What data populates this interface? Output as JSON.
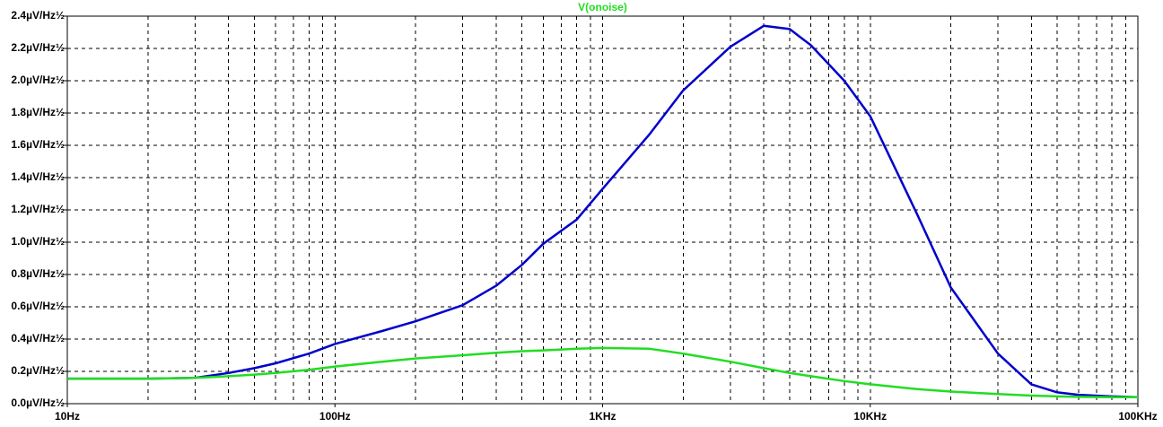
{
  "chart_data": {
    "type": "line",
    "xscale": "log",
    "grid": true,
    "minor_grid": true,
    "x": [
      10,
      20,
      30,
      40,
      50,
      60,
      80,
      100,
      150,
      200,
      300,
      400,
      500,
      600,
      800,
      1000,
      1500,
      2000,
      3000,
      4000,
      5000,
      6000,
      8000,
      10000,
      15000,
      20000,
      30000,
      40000,
      50000,
      60000,
      80000,
      100000
    ],
    "series": [
      {
        "color": "#0000cc",
        "values": [
          0.155,
          0.155,
          0.16,
          0.19,
          0.22,
          0.25,
          0.31,
          0.37,
          0.45,
          0.51,
          0.61,
          0.73,
          0.86,
          0.99,
          1.14,
          1.33,
          1.67,
          1.94,
          2.21,
          2.34,
          2.32,
          2.22,
          2.0,
          1.78,
          1.17,
          0.72,
          0.31,
          0.12,
          0.07,
          0.055,
          0.045,
          0.04
        ]
      },
      {
        "name": "V(onoise)",
        "color": "#22dd22",
        "values": [
          0.155,
          0.155,
          0.16,
          0.17,
          0.18,
          0.19,
          0.21,
          0.23,
          0.26,
          0.28,
          0.3,
          0.315,
          0.325,
          0.33,
          0.34,
          0.345,
          0.34,
          0.31,
          0.26,
          0.22,
          0.19,
          0.17,
          0.14,
          0.12,
          0.09,
          0.075,
          0.06,
          0.05,
          0.045,
          0.042,
          0.04,
          0.04
        ]
      }
    ],
    "xlim": [
      10,
      100000
    ],
    "xticks": [
      {
        "value": 10,
        "label": "10Hz"
      },
      {
        "value": 100,
        "label": "100Hz"
      },
      {
        "value": 1000,
        "label": "1KHz"
      },
      {
        "value": 10000,
        "label": "10KHz"
      },
      {
        "value": 100000,
        "label": "100KHz"
      }
    ],
    "ylim": [
      0,
      2.4
    ],
    "yticks": [
      {
        "value": 0,
        "label": "0.0µV/Hz½"
      },
      {
        "value": 0.2,
        "label": "0.2µV/Hz½"
      },
      {
        "value": 0.4,
        "label": "0.4µV/Hz½"
      },
      {
        "value": 0.6,
        "label": "0.6µV/Hz½"
      },
      {
        "value": 0.8,
        "label": "0.8µV/Hz½"
      },
      {
        "value": 1.0,
        "label": "1.0µV/Hz½"
      },
      {
        "value": 1.2,
        "label": "1.2µV/Hz½"
      },
      {
        "value": 1.4,
        "label": "1.4µV/Hz½"
      },
      {
        "value": 1.6,
        "label": "1.6µV/Hz½"
      },
      {
        "value": 1.8,
        "label": "1.8µV/Hz½"
      },
      {
        "value": 2.0,
        "label": "2.0µV/Hz½"
      },
      {
        "value": 2.2,
        "label": "2.2µV/Hz½"
      },
      {
        "value": 2.4,
        "label": "2.4µV/Hz½"
      }
    ]
  }
}
